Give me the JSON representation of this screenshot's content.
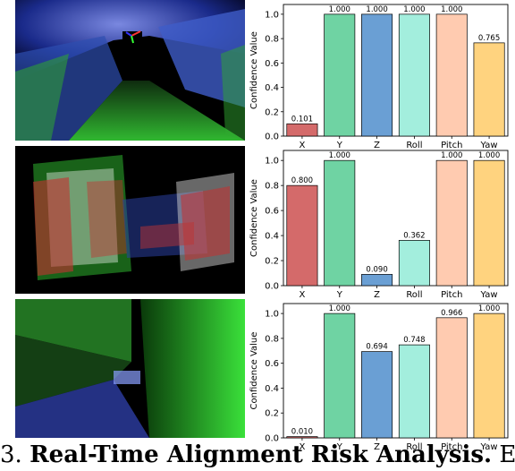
{
  "colors": {
    "X": "#d46a6a",
    "Y": "#6fd3a3",
    "Z": "#6a9fd4",
    "Roll": "#a3eedd",
    "Pitch": "#ffcbb0",
    "Yaw": "#ffd37f"
  },
  "chart_data": [
    {
      "type": "bar",
      "categories": [
        "X",
        "Y",
        "Z",
        "Roll",
        "Pitch",
        "Yaw"
      ],
      "values": [
        0.101,
        1.0,
        1.0,
        1.0,
        1.0,
        0.765
      ],
      "value_labels": [
        "0.101",
        "1.000",
        "1.000",
        "1.000",
        "1.000",
        "0.765"
      ],
      "ylabel": "Confidence Value",
      "ylim": [
        0,
        1.08
      ],
      "yticks": [
        "0.0",
        "0.2",
        "0.4",
        "0.6",
        "0.8",
        "1.0"
      ]
    },
    {
      "type": "bar",
      "categories": [
        "X",
        "Y",
        "Z",
        "Roll",
        "Pitch",
        "Yaw"
      ],
      "values": [
        0.8,
        1.0,
        0.09,
        0.362,
        1.0,
        1.0
      ],
      "value_labels": [
        "0.800",
        "1.000",
        "0.090",
        "0.362",
        "1.000",
        "1.000"
      ],
      "ylabel": "Confidence Value",
      "ylim": [
        0,
        1.08
      ],
      "yticks": [
        "0.0",
        "0.2",
        "0.4",
        "0.6",
        "0.8",
        "1.0"
      ]
    },
    {
      "type": "bar",
      "categories": [
        "X",
        "Y",
        "Z",
        "Roll",
        "Pitch",
        "Yaw"
      ],
      "values": [
        0.01,
        1.0,
        0.694,
        0.748,
        0.966,
        1.0
      ],
      "value_labels": [
        "0.010",
        "1.000",
        "0.694",
        "0.748",
        "0.966",
        "1.000"
      ],
      "ylabel": "Confidence Value",
      "ylim": [
        0,
        1.08
      ],
      "yticks": [
        "0.0",
        "0.2",
        "0.4",
        "0.6",
        "0.8",
        "1.0"
      ]
    }
  ],
  "caption": {
    "prefix": "3.",
    "bold": "Real-Time Alignment Risk Analysis.",
    "rest": "Exam"
  }
}
